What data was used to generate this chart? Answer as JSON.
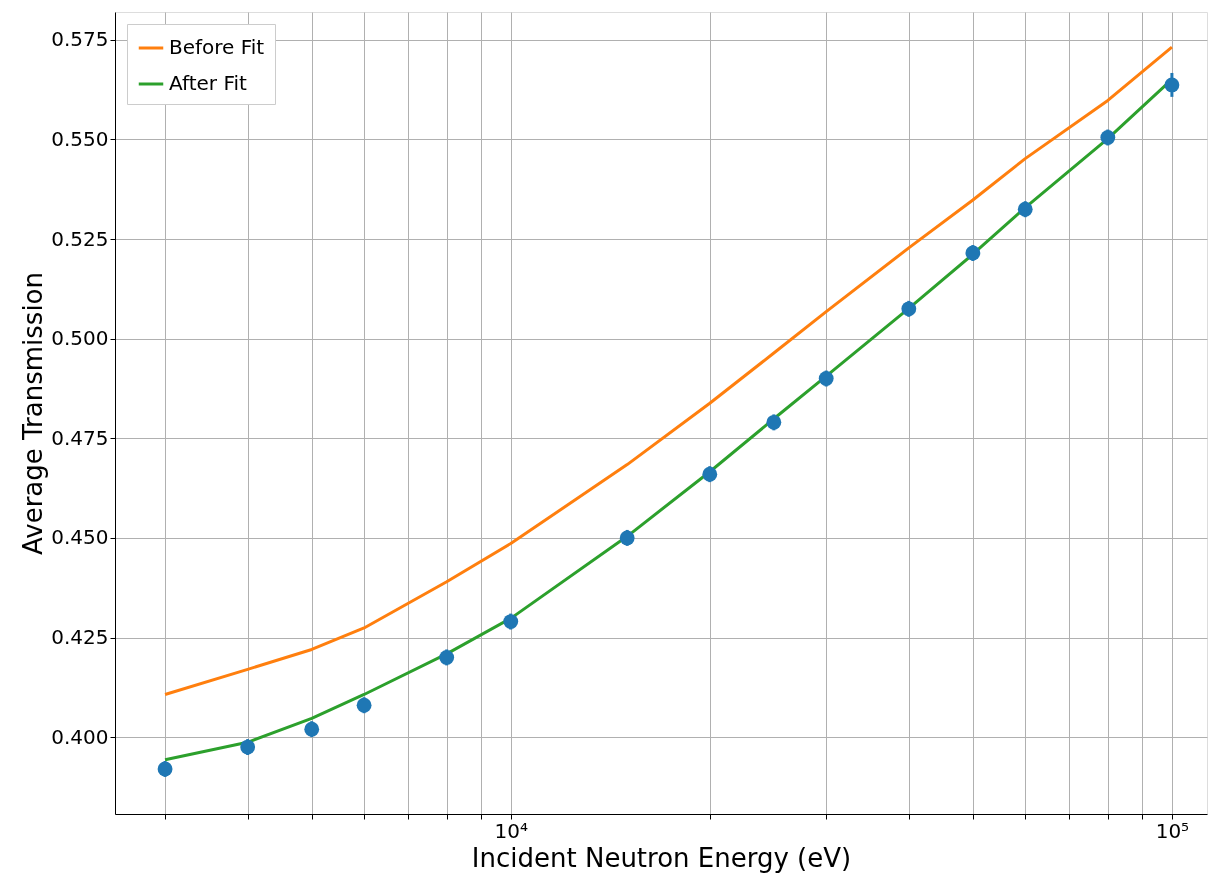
{
  "chart_data": {
    "type": "line",
    "xlabel": "Incident Neutron Energy (eV)",
    "ylabel": "Average Transmission",
    "x": [
      3000,
      4000,
      5000,
      6000,
      8000,
      10000,
      15000,
      20000,
      25000,
      30000,
      40000,
      50000,
      60000,
      80000,
      100000
    ],
    "series": [
      {
        "name": "Before Fit",
        "color": "#ff7f0e",
        "values": [
          0.4107,
          0.417,
          0.422,
          0.4274,
          0.439,
          0.4486,
          0.4684,
          0.4838,
          0.4964,
          0.5068,
          0.5228,
          0.5348,
          0.5452,
          0.5598,
          0.5732
        ]
      },
      {
        "name": "After Fit",
        "color": "#2ca02c",
        "values": [
          0.3943,
          0.3987,
          0.4047,
          0.4107,
          0.4209,
          0.4298,
          0.4504,
          0.4666,
          0.4799,
          0.4906,
          0.5076,
          0.5212,
          0.5329,
          0.5502,
          0.5651
        ]
      },
      {
        "color": "#1f77b4",
        "type": "scatter",
        "marker": "circle",
        "values": [
          0.392,
          0.3975,
          0.402,
          0.408,
          0.42,
          0.429,
          0.45,
          0.466,
          0.479,
          0.49,
          0.5075,
          0.5215,
          0.5325,
          0.5505,
          0.5637
        ],
        "errors": [
          0.002,
          0.002,
          0.002,
          0.002,
          0.002,
          0.002,
          0.002,
          0.002,
          0.002,
          0.002,
          0.002,
          0.002,
          0.002,
          0.002,
          0.003
        ]
      }
    ],
    "log": "x",
    "xlim": [
      2520,
      113000
    ],
    "ylim": [
      0.3807,
      0.582
    ],
    "xticks": [
      {
        "value": 3000,
        "label": null
      },
      {
        "value": 4000,
        "label": null
      },
      {
        "value": 5000,
        "label": null
      },
      {
        "value": 6000,
        "label": null
      },
      {
        "value": 7000,
        "label": null
      },
      {
        "value": 8000,
        "label": null
      },
      {
        "value": 9000,
        "label": null
      },
      {
        "value": 10000,
        "label": "10⁴"
      },
      {
        "value": 20000,
        "label": null
      },
      {
        "value": 30000,
        "label": null
      },
      {
        "value": 40000,
        "label": null
      },
      {
        "value": 50000,
        "label": null
      },
      {
        "value": 60000,
        "label": null
      },
      {
        "value": 70000,
        "label": null
      },
      {
        "value": 80000,
        "label": null
      },
      {
        "value": 90000,
        "label": null
      },
      {
        "value": 100000,
        "label": "10⁵"
      }
    ],
    "yticks": [
      {
        "value": 0.4,
        "label": "0.400"
      },
      {
        "value": 0.425,
        "label": "0.425"
      },
      {
        "value": 0.45,
        "label": "0.450"
      },
      {
        "value": 0.475,
        "label": "0.475"
      },
      {
        "value": 0.5,
        "label": "0.500"
      },
      {
        "value": 0.525,
        "label": "0.525"
      },
      {
        "value": 0.55,
        "label": "0.550"
      },
      {
        "value": 0.575,
        "label": "0.575"
      }
    ],
    "grid": true,
    "legend": "top left"
  }
}
